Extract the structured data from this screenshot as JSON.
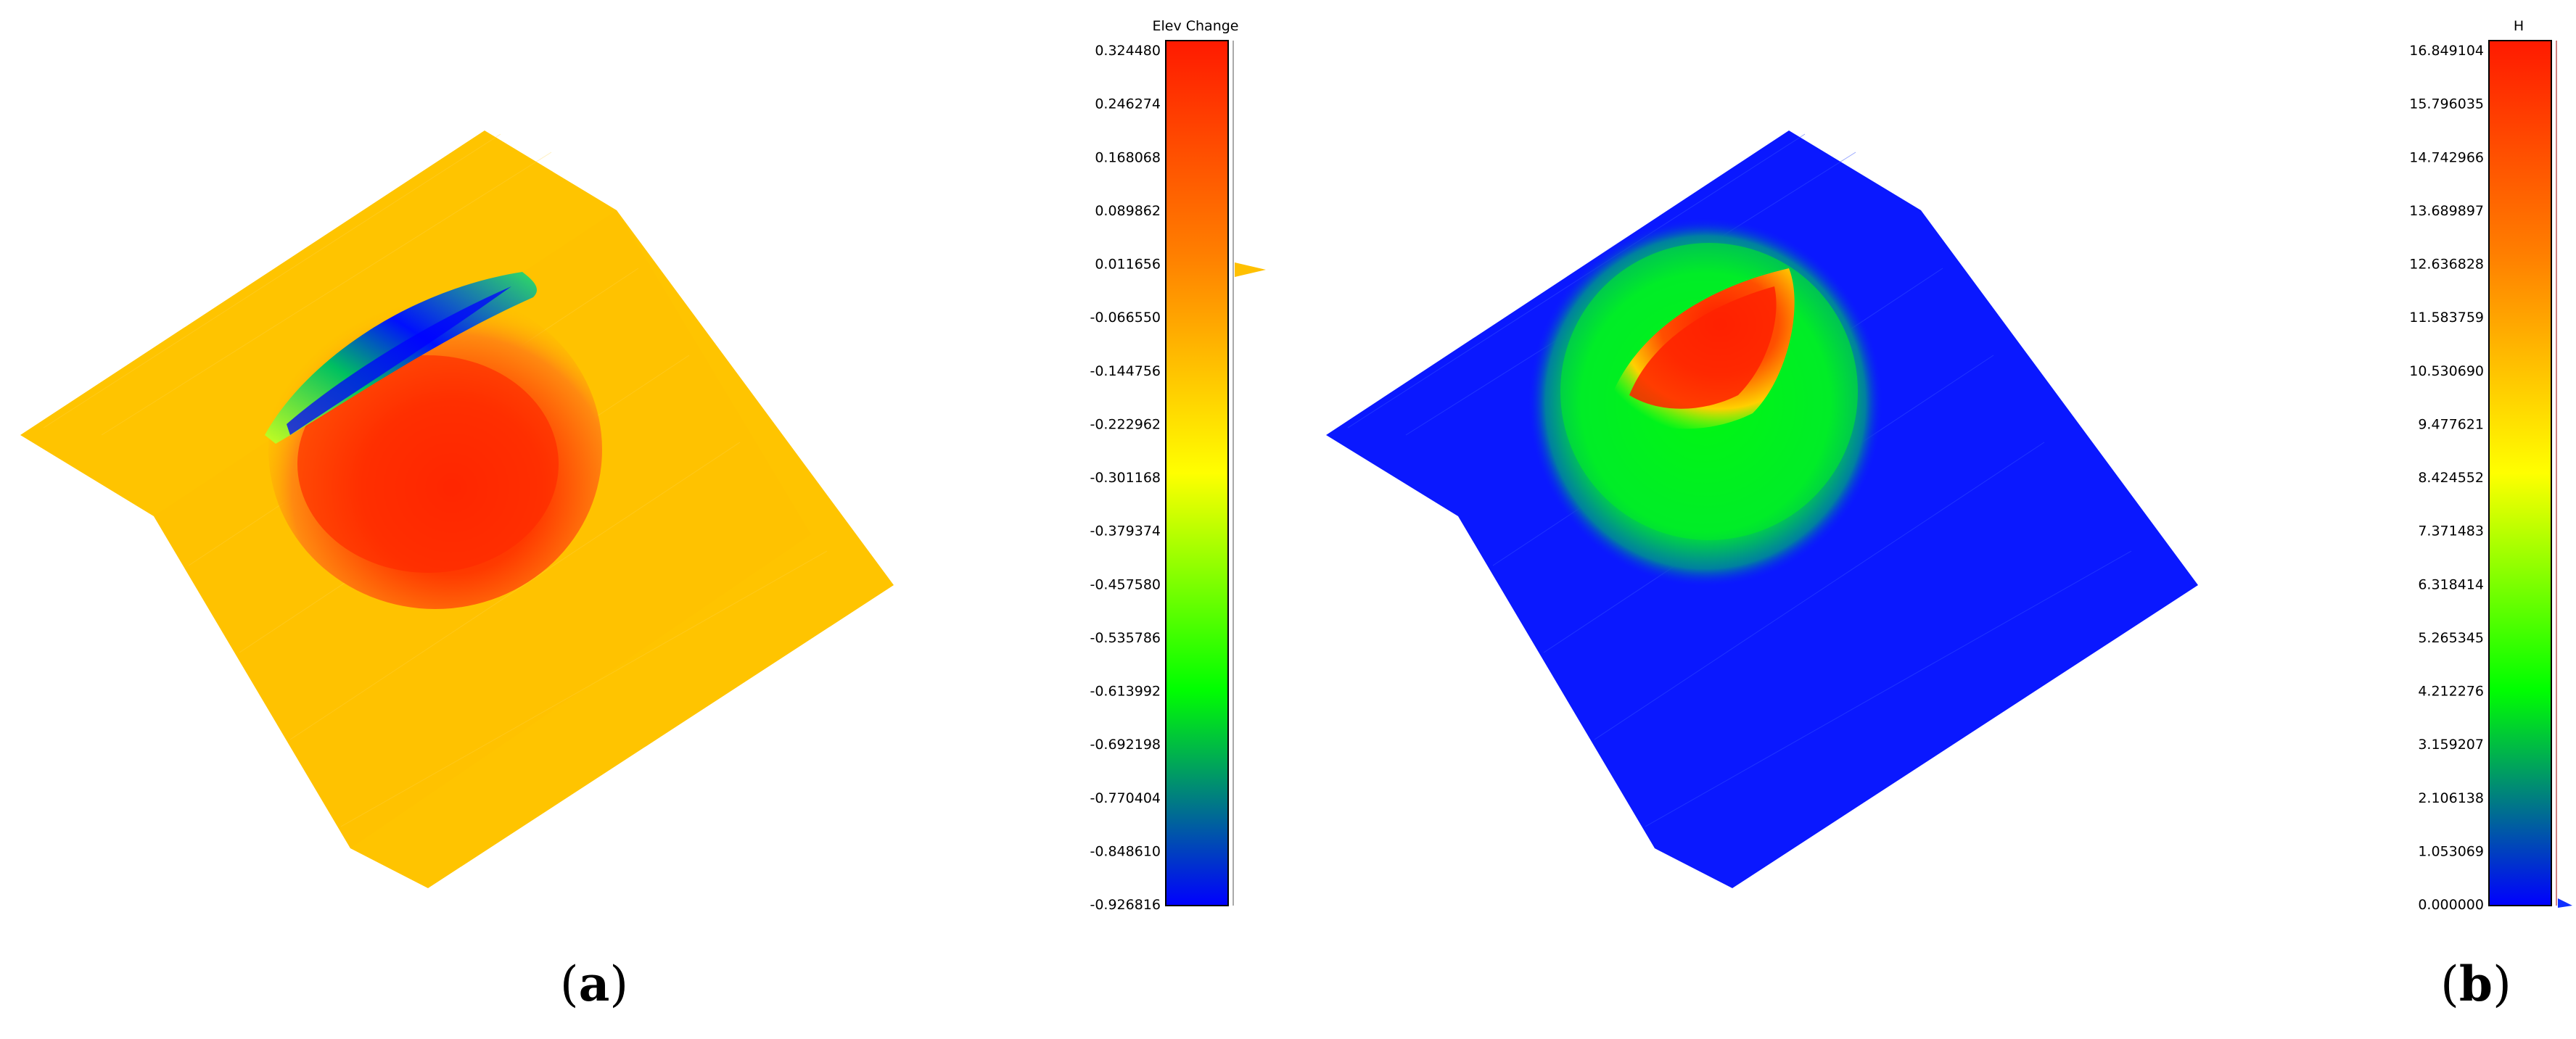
{
  "panels": [
    {
      "id": "a",
      "caption_letter": "a",
      "colorbar": {
        "title": "Elev Change",
        "ticks": [
          "0.324480",
          "0.246274",
          "0.168068",
          "0.089862",
          "0.011656",
          "-0.066550",
          "-0.144756",
          "-0.222962",
          "-0.301168",
          "-0.379374",
          "-0.457580",
          "-0.535786",
          "-0.613992",
          "-0.692198",
          "-0.770404",
          "-0.848610",
          "-0.926816"
        ],
        "marker_value": 0.011656,
        "marker_color": "#ffc000"
      },
      "surface_color": "#ffc400"
    },
    {
      "id": "b",
      "caption_letter": "b",
      "colorbar": {
        "title": "H",
        "ticks": [
          "16.849104",
          "15.796035",
          "14.742966",
          "13.689897",
          "12.636828",
          "11.583759",
          "10.530690",
          "9.477621",
          "8.424552",
          "7.371483",
          "6.318414",
          "5.265345",
          "4.212276",
          "3.159207",
          "2.106138",
          "1.053069",
          "0.000000"
        ],
        "marker_value": 0.0,
        "marker_color": "#1030ff"
      },
      "surface_color": "#0a18ff"
    }
  ],
  "colormap": [
    "#ff1a00",
    "#ff8000",
    "#ffff00",
    "#00ff00",
    "#0000ff"
  ]
}
